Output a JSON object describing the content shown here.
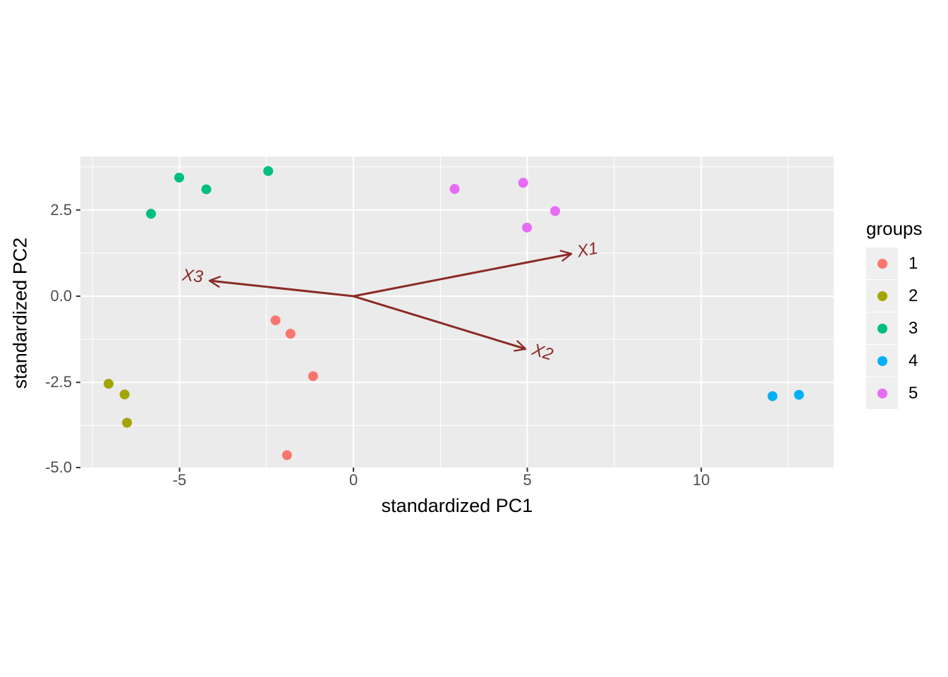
{
  "chart_data": {
    "type": "scatter",
    "title": "",
    "xlabel": "standardized PC1",
    "ylabel": "standardized PC2",
    "xlim": [
      -7.85,
      13.81
    ],
    "ylim": [
      -4.97,
      4.05
    ],
    "grid": true,
    "panel_bg": "#EBEBEB",
    "grid_color": "#FFFFFF",
    "tick_color": "#333333",
    "tick_label_color": "#4D4D4D",
    "x_ticks": [
      {
        "value": -5,
        "label": "-5"
      },
      {
        "value": 0,
        "label": "0"
      },
      {
        "value": 5,
        "label": "5"
      },
      {
        "value": 10,
        "label": "10"
      }
    ],
    "y_ticks": [
      {
        "value": 2.5,
        "label": "2.5"
      },
      {
        "value": 0,
        "label": "0.0"
      },
      {
        "value": -2.5,
        "label": "-2.5"
      },
      {
        "value": -5,
        "label": "-5.0"
      }
    ],
    "x_minor": [
      -7.5,
      -2.5,
      2.5,
      7.5,
      12.5
    ],
    "y_minor": [
      3.75,
      1.25,
      -1.25,
      -3.75
    ],
    "series": [
      {
        "name": "1",
        "color": "#F8766D",
        "points": [
          [
            -2.24,
            -0.7
          ],
          [
            -1.81,
            -1.09
          ],
          [
            -1.16,
            -2.32
          ],
          [
            -1.91,
            -4.61
          ]
        ]
      },
      {
        "name": "2",
        "color": "#A3A500",
        "points": [
          [
            -7.04,
            -2.54
          ],
          [
            -6.58,
            -2.85
          ],
          [
            -6.51,
            -3.67
          ]
        ]
      },
      {
        "name": "3",
        "color": "#00BF7D",
        "points": [
          [
            -5.01,
            3.44
          ],
          [
            -4.23,
            3.1
          ],
          [
            -2.45,
            3.63
          ],
          [
            -5.82,
            2.39
          ]
        ]
      },
      {
        "name": "4",
        "color": "#00B0F6",
        "points": [
          [
            12.05,
            -2.9
          ],
          [
            12.81,
            -2.86
          ]
        ]
      },
      {
        "name": "5",
        "color": "#E76BF3",
        "points": [
          [
            2.91,
            3.11
          ],
          [
            4.88,
            3.29
          ],
          [
            5.8,
            2.47
          ],
          [
            4.99,
            1.99
          ]
        ]
      }
    ],
    "arrows": [
      {
        "label": "X1",
        "x0": 0,
        "y0": 0,
        "x": 6.27,
        "y": 1.23,
        "label_x": 6.73,
        "label_y": 1.32,
        "label_angle": -11
      },
      {
        "label": "X2",
        "x0": 0,
        "y0": 0,
        "x": 4.95,
        "y": -1.53,
        "label_x": 5.44,
        "label_y": -1.63,
        "label_angle": 17
      },
      {
        "label": "X3",
        "x0": 0,
        "y0": 0,
        "x": -4.14,
        "y": 0.45,
        "label_x": -4.62,
        "label_y": 0.58,
        "label_angle": 6
      }
    ],
    "arrow_color": "#8B2B26",
    "legend": {
      "title": "groups",
      "position": "right",
      "items": [
        {
          "label": "1",
          "color": "#F8766D"
        },
        {
          "label": "2",
          "color": "#A3A500"
        },
        {
          "label": "3",
          "color": "#00BF7D"
        },
        {
          "label": "4",
          "color": "#00B0F6"
        },
        {
          "label": "5",
          "color": "#E76BF3"
        }
      ]
    }
  }
}
